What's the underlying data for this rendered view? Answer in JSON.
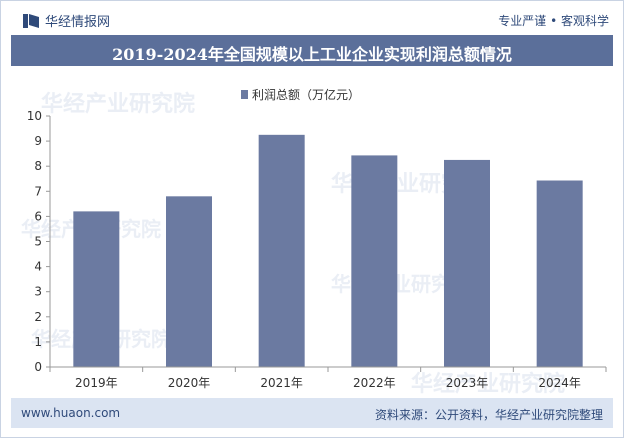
{
  "header": {
    "brand": "华经情报网",
    "slogan": "专业严谨 • 客观科学",
    "logo_icon": "huajing-logo-icon"
  },
  "title": "2019-2024年全国规模以上工业企业实现利润总额情况",
  "footer": {
    "url": "www.huaon.com",
    "source": "资料来源：公开资料，华经产业研究院整理"
  },
  "watermark": "华经产业研究院",
  "colors": {
    "bar": "#6b7aa1",
    "title_bg": "#5b6f9a",
    "footer_bg": "#dbe4f2",
    "text": "#2f4a7a"
  },
  "chart_data": {
    "type": "bar",
    "title": "",
    "categories": [
      "2019年",
      "2020年",
      "2021年",
      "2022年",
      "2023年",
      "2024年"
    ],
    "series": [
      {
        "name": "利润总额（万亿元）",
        "values": [
          6.2,
          6.8,
          9.25,
          8.43,
          8.25,
          7.43
        ]
      }
    ],
    "ylim": [
      0,
      10
    ],
    "yticks": [
      0,
      1,
      2,
      3,
      4,
      5,
      6,
      7,
      8,
      9,
      10
    ],
    "grid": false,
    "legend_position": "top-center"
  }
}
